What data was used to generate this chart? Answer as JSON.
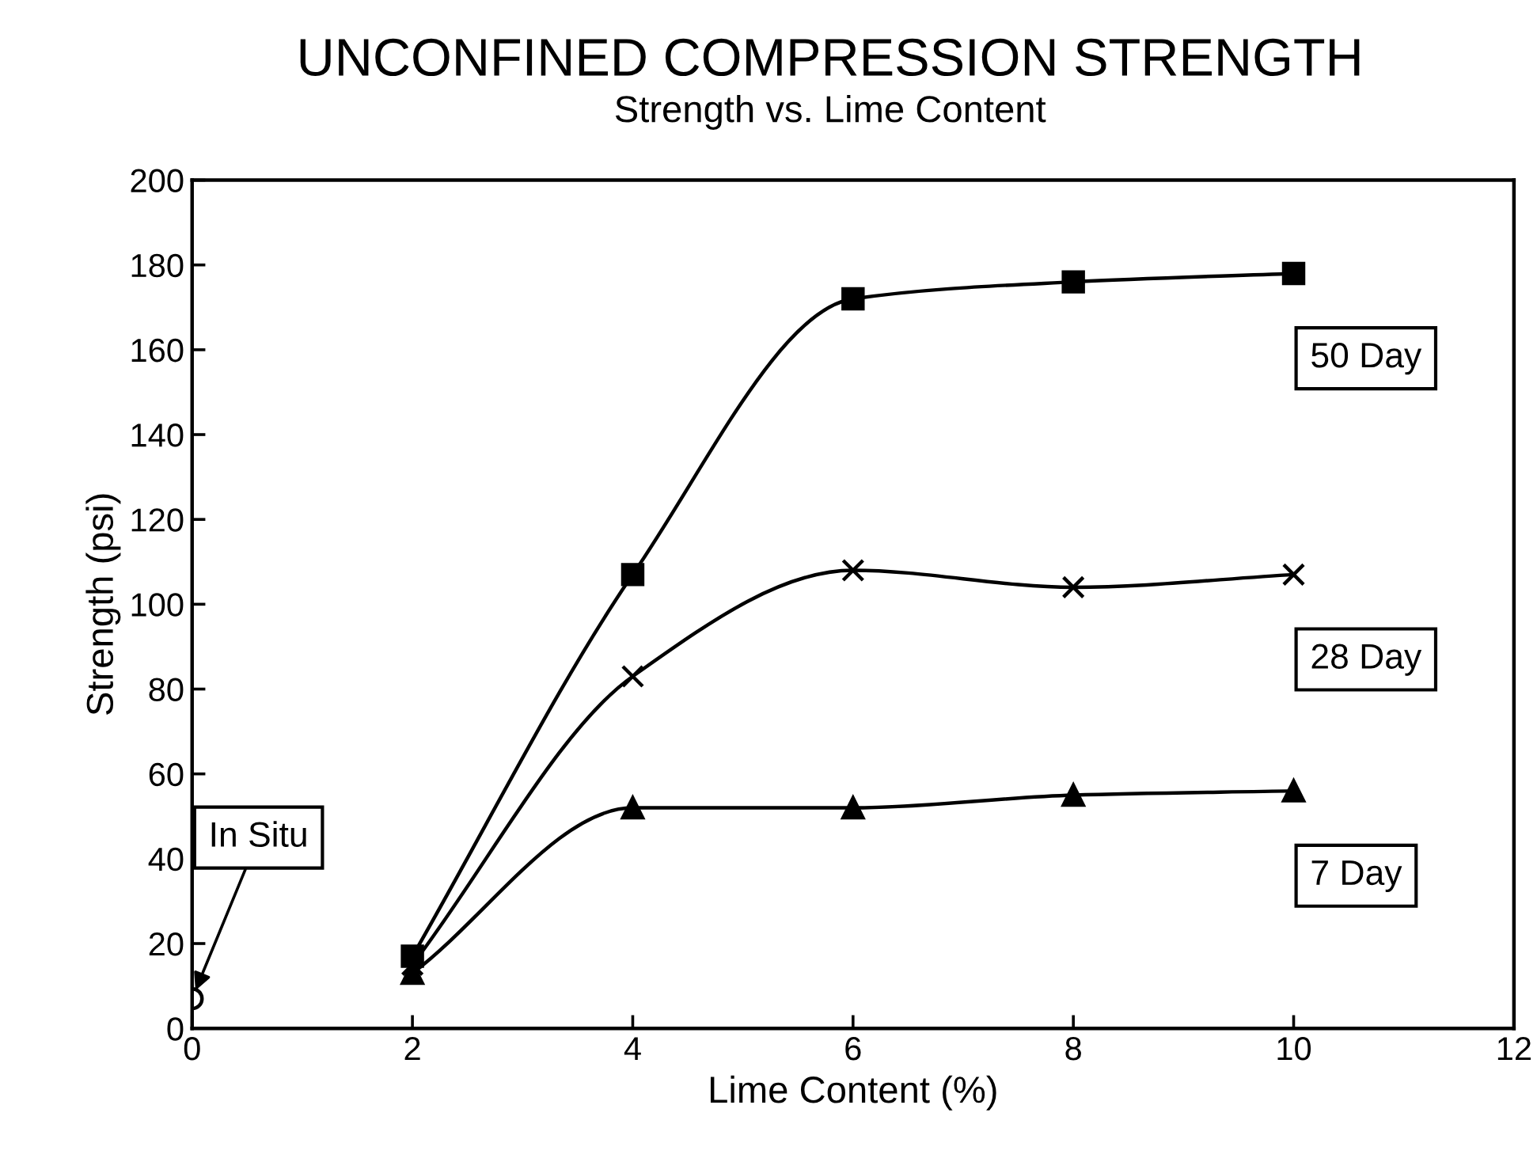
{
  "chart_data": {
    "type": "line",
    "title": "UNCONFINED COMPRESSION STRENGTH",
    "subtitle": "Strength vs. Lime Content",
    "xlabel": "Lime Content (%)",
    "ylabel": "Strength (psi)",
    "series": [
      {
        "name": "50 Day",
        "color": "#000000",
        "marker": "square",
        "x": [
          2,
          4,
          6,
          8,
          10
        ],
        "values": [
          17,
          107,
          172,
          176,
          178
        ]
      },
      {
        "name": "28 Day",
        "color": "#000000",
        "marker": "cross",
        "x": [
          2,
          4,
          6,
          8,
          10
        ],
        "values": [
          15,
          83,
          108,
          104,
          107
        ]
      },
      {
        "name": "7 Day",
        "color": "#000000",
        "marker": "triangle",
        "x": [
          2,
          4,
          6,
          8,
          10
        ],
        "values": [
          13,
          52,
          52,
          55,
          56
        ]
      },
      {
        "type": "scatter",
        "color": "#000000",
        "marker": "circle",
        "x": [
          0
        ],
        "values": [
          7
        ]
      }
    ],
    "annotations": [
      {
        "text": "In Situ",
        "x": 0,
        "y": 7
      }
    ],
    "xlim": [
      0,
      12
    ],
    "xticks": [
      0,
      2,
      4,
      6,
      8,
      10,
      12
    ],
    "ylim": [
      0,
      200
    ],
    "yticks": [
      0,
      20,
      40,
      60,
      80,
      100,
      120,
      140,
      160,
      180,
      200
    ],
    "grid": false,
    "legend": false,
    "line_style": "solid"
  }
}
